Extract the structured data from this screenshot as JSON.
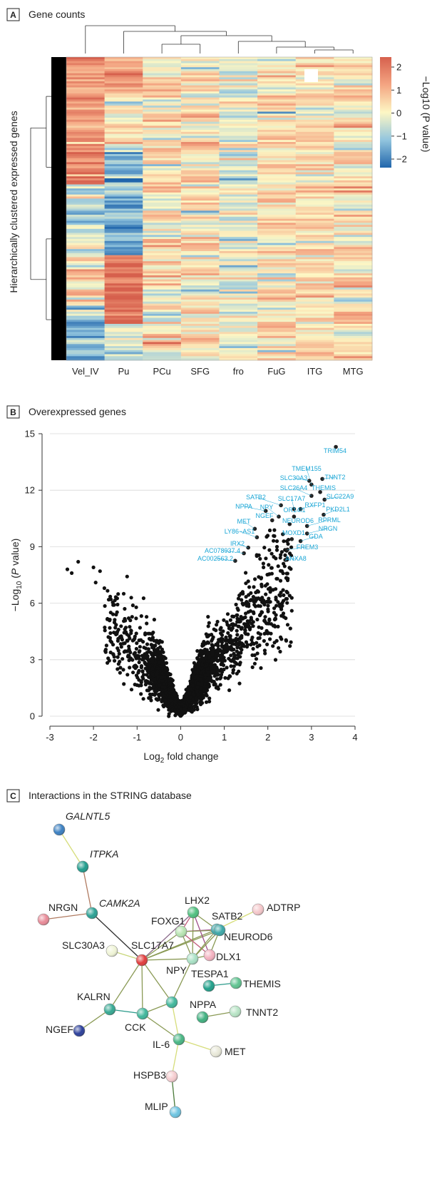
{
  "panel_a": {
    "letter": "A",
    "title": "Gene counts",
    "ylabel": "Hierarchically clustered expressed genes",
    "colorbar": {
      "label": "−Log10 (P value)",
      "ticks": [
        "2",
        "1",
        "0",
        "−1",
        "−2"
      ]
    }
  },
  "panel_b": {
    "letter": "B",
    "title": "Overexpressed genes"
  },
  "panel_c": {
    "letter": "C",
    "title": "Interactions in the STRING database"
  },
  "chart_data": [
    {
      "type": "heatmap",
      "title": "Gene counts",
      "ylabel": "Hierarchically clustered expressed genes",
      "columns": [
        "Vel_IV",
        "Pu",
        "PCu",
        "SFG",
        "fro",
        "FuG",
        "ITG",
        "MTG"
      ],
      "value_range": [
        -2,
        2
      ],
      "colorscale": [
        "#2166ac",
        "#92c5de",
        "#fdf7c4",
        "#f4a582",
        "#d6604d"
      ],
      "column_dendrogram": "present"
    },
    {
      "type": "scatter",
      "title": "Overexpressed genes",
      "xlabel": "Log2 fold change",
      "ylabel": "−Log10 (P value)",
      "xlim": [
        -3,
        4
      ],
      "ylim": [
        0,
        15
      ],
      "xticks": [
        "-3",
        "-2",
        "-1",
        "0",
        "1",
        "2",
        "3",
        "4"
      ],
      "yticks": [
        "0",
        "3",
        "6",
        "9",
        "12",
        "15"
      ],
      "grid": "horizontal",
      "highlighted_points": [
        {
          "label": "TRIM54",
          "x": 3.56,
          "y": 14.3
        },
        {
          "label": "TMEM155",
          "x": 3.0,
          "y": 12.3
        },
        {
          "label": "TNNT2",
          "x": 3.25,
          "y": 12.6
        },
        {
          "label": "SLC30A3",
          "x": 2.95,
          "y": 12.5
        },
        {
          "label": "SLC26A4",
          "x": 3.0,
          "y": 11.7
        },
        {
          "label": "THEMIS",
          "x": 3.2,
          "y": 11.9
        },
        {
          "label": "SLC22A9",
          "x": 3.3,
          "y": 11.5
        },
        {
          "label": "SATB2",
          "x": 2.3,
          "y": 11.2
        },
        {
          "label": "SLC17A7",
          "x": 2.6,
          "y": 11.0
        },
        {
          "label": "RXFP1",
          "x": 2.75,
          "y": 11.0
        },
        {
          "label": "PKD2L1",
          "x": 3.28,
          "y": 10.7
        },
        {
          "label": "NPPA",
          "x": 1.95,
          "y": 10.9
        },
        {
          "label": "NPY",
          "x": 2.25,
          "y": 10.6
        },
        {
          "label": "OR14I1",
          "x": 2.6,
          "y": 10.6
        },
        {
          "label": "NGEF",
          "x": 2.1,
          "y": 10.4
        },
        {
          "label": "NEUROD6",
          "x": 2.5,
          "y": 10.2
        },
        {
          "label": "RPRML",
          "x": 2.9,
          "y": 10.1
        },
        {
          "label": "MET",
          "x": 1.7,
          "y": 9.95
        },
        {
          "label": "NRGN",
          "x": 2.9,
          "y": 9.7
        },
        {
          "label": "LY86−AS1",
          "x": 1.75,
          "y": 9.5
        },
        {
          "label": "MOXD1",
          "x": 2.55,
          "y": 9.4
        },
        {
          "label": "GDA",
          "x": 2.75,
          "y": 9.3
        },
        {
          "label": "IRX2",
          "x": 1.55,
          "y": 8.95
        },
        {
          "label": "FREM3",
          "x": 2.45,
          "y": 8.85
        },
        {
          "label": "AC078937.4",
          "x": 1.45,
          "y": 8.65
        },
        {
          "label": "AC002563.2",
          "x": 1.25,
          "y": 8.25
        },
        {
          "label": "ANXA8",
          "x": 2.4,
          "y": 8.3
        }
      ]
    }
  ],
  "network": {
    "title": "Interactions in the STRING database",
    "nodes": [
      {
        "id": "GALNTL5",
        "label": "GALNTL5",
        "italic": true,
        "color": "#3a7fc1"
      },
      {
        "id": "ITPKA",
        "label": "ITPKA",
        "italic": true,
        "color": "#1f9c8c"
      },
      {
        "id": "NRGN",
        "label": "NRGN",
        "italic": false,
        "color": "#e88a97"
      },
      {
        "id": "CAMK2A",
        "label": "CAMK2A",
        "italic": true,
        "color": "#2aa093"
      },
      {
        "id": "LHX2",
        "label": "LHX2",
        "italic": false,
        "color": "#4fbf7e"
      },
      {
        "id": "ADTRP",
        "label": "ADTRP",
        "italic": false,
        "color": "#f4c6c9"
      },
      {
        "id": "FOXG1",
        "label": "FOXG1",
        "italic": false,
        "color": "#b7e4b0"
      },
      {
        "id": "SATB2",
        "label": "SATB2",
        "italic": false,
        "color": "#3aa6a6"
      },
      {
        "id": "NEUROD6",
        "label": "NEUROD6",
        "italic": false,
        "color": "#3aa6a6"
      },
      {
        "id": "SLC30A3",
        "label": "SLC30A3",
        "italic": false,
        "color": "#eff4d6"
      },
      {
        "id": "SLC17A7",
        "label": "SLC17A7",
        "italic": false,
        "color": "#e03c3c"
      },
      {
        "id": "DLX1",
        "label": "DLX1",
        "italic": false,
        "color": "#f3b0bf"
      },
      {
        "id": "NPY",
        "label": "NPY",
        "italic": false,
        "color": "#a8e0c4"
      },
      {
        "id": "TESPA1",
        "label": "TESPA1",
        "italic": false,
        "color": "#1fa08a"
      },
      {
        "id": "THEMIS",
        "label": "THEMIS",
        "italic": false,
        "color": "#5ec28f"
      },
      {
        "id": "KALRN",
        "label": "KALRN",
        "italic": false,
        "color": "#34a892"
      },
      {
        "id": "NPPA",
        "label": "NPPA",
        "italic": false,
        "color": "#3fb07f"
      },
      {
        "id": "TNNT2",
        "label": "TNNT2",
        "italic": false,
        "color": "#b6e3c4"
      },
      {
        "id": "NGEF",
        "label": "NGEF",
        "italic": false,
        "color": "#2b3f9a"
      },
      {
        "id": "CCK",
        "label": "CCK",
        "italic": false,
        "color": "#3fb69a"
      },
      {
        "id": "HUB",
        "label": "",
        "italic": false,
        "color": "#3fb69a"
      },
      {
        "id": "IL-6",
        "label": "IL-6",
        "italic": false,
        "color": "#47b583"
      },
      {
        "id": "MET",
        "label": "MET",
        "italic": false,
        "color": "#e8e8d8"
      },
      {
        "id": "HSPB3",
        "label": "HSPB3",
        "italic": false,
        "color": "#f5cccf"
      },
      {
        "id": "MLIP",
        "label": "MLIP",
        "italic": false,
        "color": "#6cc3e0"
      }
    ],
    "edges": [
      {
        "a": "GALNTL5",
        "b": "ITPKA",
        "color": "#d6dd7a"
      },
      {
        "a": "ITPKA",
        "b": "CAMK2A",
        "color": "#b07a60"
      },
      {
        "a": "NRGN",
        "b": "CAMK2A",
        "color": "#b07a60"
      },
      {
        "a": "CAMK2A",
        "b": "SLC17A7",
        "color": "#303030"
      },
      {
        "a": "SLC30A3",
        "b": "SLC17A7",
        "color": "#c8d67a"
      },
      {
        "a": "SLC17A7",
        "b": "FOXG1",
        "color": "#8a9a55"
      },
      {
        "a": "SLC17A7",
        "b": "LHX2",
        "color": "#8a6a8a"
      },
      {
        "a": "SLC17A7",
        "b": "SATB2",
        "color": "#8a9a55"
      },
      {
        "a": "SLC17A7",
        "b": "NEUROD6",
        "color": "#8a9a55"
      },
      {
        "a": "SLC17A7",
        "b": "NPY",
        "color": "#8a9a55"
      },
      {
        "a": "SLC17A7",
        "b": "KALRN",
        "color": "#8a9a55"
      },
      {
        "a": "SLC17A7",
        "b": "CCK",
        "color": "#8a9a55"
      },
      {
        "a": "SLC17A7",
        "b": "HUB",
        "color": "#8a9a55"
      },
      {
        "a": "LHX2",
        "b": "FOXG1",
        "color": "#c05a7a"
      },
      {
        "a": "LHX2",
        "b": "NPY",
        "color": "#8a9a55"
      },
      {
        "a": "LHX2",
        "b": "DLX1",
        "color": "#a0508a"
      },
      {
        "a": "LHX2",
        "b": "SATB2",
        "color": "#8a9a55"
      },
      {
        "a": "FOXG1",
        "b": "SATB2",
        "color": "#a0508a"
      },
      {
        "a": "FOXG1",
        "b": "NEUROD6",
        "color": "#8a9a55"
      },
      {
        "a": "FOXG1",
        "b": "NPY",
        "color": "#8a9a55"
      },
      {
        "a": "FOXG1",
        "b": "DLX1",
        "color": "#c05a7a"
      },
      {
        "a": "SATB2",
        "b": "NEUROD6",
        "color": "#8a9a55"
      },
      {
        "a": "SATB2",
        "b": "NPY",
        "color": "#8a9a55"
      },
      {
        "a": "SATB2",
        "b": "ADTRP",
        "color": "#d6dd7a"
      },
      {
        "a": "NEUROD6",
        "b": "NPY",
        "color": "#8a9a55"
      },
      {
        "a": "NEUROD6",
        "b": "DLX1",
        "color": "#8a9a55"
      },
      {
        "a": "NPY",
        "b": "DLX1",
        "color": "#8a9a55"
      },
      {
        "a": "NPY",
        "b": "HUB",
        "color": "#8a9a55"
      },
      {
        "a": "TESPA1",
        "b": "THEMIS",
        "color": "#2a9a8a"
      },
      {
        "a": "KALRN",
        "b": "CCK",
        "color": "#2a9a8a"
      },
      {
        "a": "KALRN",
        "b": "NGEF",
        "color": "#8a9a55"
      },
      {
        "a": "CCK",
        "b": "HUB",
        "color": "#8a9a55"
      },
      {
        "a": "CCK",
        "b": "IL-6",
        "color": "#8a9a55"
      },
      {
        "a": "HUB",
        "b": "IL-6",
        "color": "#d6dd7a"
      },
      {
        "a": "NPPA",
        "b": "TNNT2",
        "color": "#8a9a55"
      },
      {
        "a": "IL-6",
        "b": "MET",
        "color": "#d6dd7a"
      },
      {
        "a": "IL-6",
        "b": "HSPB3",
        "color": "#d6dd7a"
      },
      {
        "a": "HSPB3",
        "b": "MLIP",
        "color": "#4a7a3a"
      }
    ]
  }
}
